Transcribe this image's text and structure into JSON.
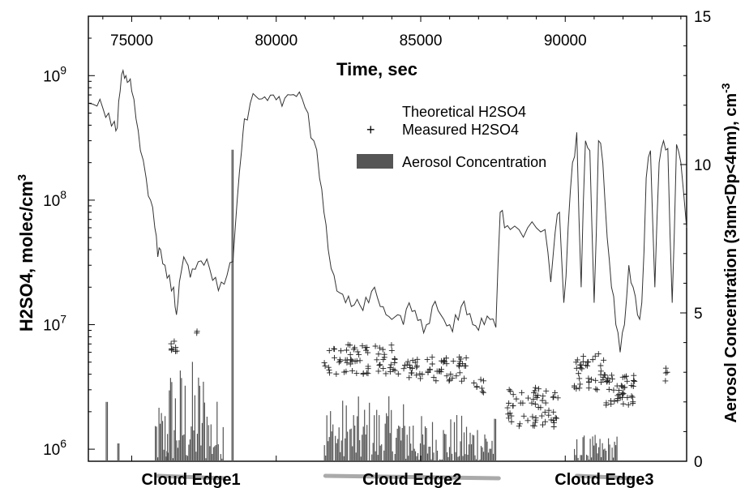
{
  "chart_data": {
    "type": "line",
    "x": {
      "label": "Time, sec",
      "range": [
        73500,
        94200
      ],
      "ticks": [
        75000,
        80000,
        85000,
        90000
      ],
      "tick_labels": [
        "75000",
        "80000",
        "85000",
        "90000"
      ],
      "position": "top"
    },
    "y_left": {
      "label": "H2SO4, molec/cm3",
      "label_base": "H2SO4, molec/cm",
      "label_sup": "3",
      "scale": "log",
      "range": [
        800000,
        3000000000
      ],
      "ticks": [
        1000000,
        10000000,
        100000000,
        1000000000
      ],
      "tick_labels": [
        {
          "base": "10",
          "exp": "6"
        },
        {
          "base": "10",
          "exp": "7"
        },
        {
          "base": "10",
          "exp": "8"
        },
        {
          "base": "10",
          "exp": "9"
        }
      ]
    },
    "y_right": {
      "label": "Aerosol Concentration (3nm<Dp<4nm), cm-3",
      "label_base": "Aerosol Concentration (3nm<Dp<4nm), cm",
      "label_sup": "-3",
      "scale": "linear",
      "range": [
        0,
        15
      ],
      "ticks": [
        0,
        5,
        10,
        15
      ],
      "tick_labels": [
        "0",
        "5",
        "10",
        "15"
      ]
    },
    "legend": {
      "placement": "top-right",
      "entries": [
        {
          "label": "Theoretical H2SO4",
          "kind": "line"
        },
        {
          "label": "Measured H2SO4",
          "kind": "marker",
          "symbol": "+"
        },
        {
          "label": "Aerosol Concentration",
          "kind": "bar"
        }
      ]
    },
    "series": [
      {
        "name": "Theoretical H2SO4",
        "kind": "line",
        "axis": "left",
        "color": "#333333",
        "points": [
          [
            73500,
            600000000
          ],
          [
            73800,
            570000000
          ],
          [
            74000,
            550000000
          ],
          [
            74200,
            500000000
          ],
          [
            74400,
            430000000
          ],
          [
            74500,
            380000000
          ],
          [
            74600,
            750000000
          ],
          [
            74700,
            1100000000
          ],
          [
            74800,
            1000000000
          ],
          [
            74900,
            900000000
          ],
          [
            75000,
            750000000
          ],
          [
            75150,
            450000000
          ],
          [
            75300,
            250000000
          ],
          [
            75500,
            150000000
          ],
          [
            75650,
            100000000
          ],
          [
            75800,
            60000000
          ],
          [
            75900,
            35000000
          ],
          [
            76000,
            40000000
          ],
          [
            76150,
            30000000
          ],
          [
            76300,
            25000000
          ],
          [
            76450,
            20000000
          ],
          [
            76550,
            12000000
          ],
          [
            76650,
            22000000
          ],
          [
            76800,
            35000000
          ],
          [
            76950,
            30000000
          ],
          [
            77100,
            28000000
          ],
          [
            77300,
            32000000
          ],
          [
            77500,
            30000000
          ],
          [
            77700,
            28000000
          ],
          [
            77900,
            24000000
          ],
          [
            78100,
            22000000
          ],
          [
            78300,
            25000000
          ],
          [
            78500,
            32000000
          ],
          [
            78650,
            100000000
          ],
          [
            78800,
            250000000
          ],
          [
            78900,
            450000000
          ],
          [
            79100,
            600000000
          ],
          [
            79300,
            680000000
          ],
          [
            79500,
            650000000
          ],
          [
            79700,
            630000000
          ],
          [
            79900,
            700000000
          ],
          [
            80100,
            680000000
          ],
          [
            80300,
            660000000
          ],
          [
            80500,
            700000000
          ],
          [
            80700,
            680000000
          ],
          [
            80900,
            650000000
          ],
          [
            81100,
            500000000
          ],
          [
            81300,
            300000000
          ],
          [
            81500,
            150000000
          ],
          [
            81650,
            80000000
          ],
          [
            81800,
            40000000
          ],
          [
            82000,
            25000000
          ],
          [
            82200,
            18000000
          ],
          [
            82400,
            15000000
          ],
          [
            82600,
            14000000
          ],
          [
            82800,
            16000000
          ],
          [
            83000,
            13000000
          ],
          [
            83200,
            15000000
          ],
          [
            83400,
            20000000
          ],
          [
            83600,
            14000000
          ],
          [
            83800,
            12000000
          ],
          [
            84000,
            11000000
          ],
          [
            84200,
            12000000
          ],
          [
            84400,
            10000000
          ],
          [
            84600,
            15000000
          ],
          [
            84800,
            13000000
          ],
          [
            85000,
            11000000
          ],
          [
            85200,
            10000000
          ],
          [
            85400,
            14000000
          ],
          [
            85600,
            13000000
          ],
          [
            85800,
            11000000
          ],
          [
            86000,
            10000000
          ],
          [
            86200,
            12000000
          ],
          [
            86400,
            14000000
          ],
          [
            86600,
            12000000
          ],
          [
            86800,
            10000000
          ],
          [
            87000,
            9000000
          ],
          [
            87200,
            10000000
          ],
          [
            87400,
            11000000
          ],
          [
            87600,
            9500000
          ],
          [
            87750,
            80000000
          ],
          [
            87900,
            60000000
          ],
          [
            88100,
            58000000
          ],
          [
            88400,
            58000000
          ],
          [
            88700,
            60000000
          ],
          [
            89000,
            60000000
          ],
          [
            89300,
            58000000
          ],
          [
            89500,
            22000000
          ],
          [
            89650,
            55000000
          ],
          [
            89800,
            80000000
          ],
          [
            89950,
            15000000
          ],
          [
            90100,
            60000000
          ],
          [
            90250,
            200000000
          ],
          [
            90400,
            350000000
          ],
          [
            90550,
            20000000
          ],
          [
            90700,
            300000000
          ],
          [
            90850,
            250000000
          ],
          [
            91000,
            15000000
          ],
          [
            91150,
            300000000
          ],
          [
            91300,
            200000000
          ],
          [
            91450,
            50000000
          ],
          [
            91600,
            20000000
          ],
          [
            91750,
            10000000
          ],
          [
            91900,
            6000000
          ],
          [
            92050,
            10000000
          ],
          [
            92200,
            30000000
          ],
          [
            92350,
            20000000
          ],
          [
            92500,
            12000000
          ],
          [
            92650,
            15000000
          ],
          [
            92800,
            150000000
          ],
          [
            92950,
            250000000
          ],
          [
            93100,
            20000000
          ],
          [
            93250,
            200000000
          ],
          [
            93400,
            300000000
          ],
          [
            93550,
            260000000
          ],
          [
            93700,
            15000000
          ],
          [
            93850,
            280000000
          ],
          [
            94000,
            200000000
          ],
          [
            94200,
            60000000
          ]
        ]
      },
      {
        "name": "Measured H2SO4",
        "kind": "scatter",
        "axis": "left",
        "marker": "+",
        "color": "#222222",
        "clusters": [
          {
            "x": [
              76350,
              76600
            ],
            "y": [
              6000000,
              7500000
            ],
            "count": 8
          },
          {
            "x": [
              77250,
              77300
            ],
            "y": [
              8500000,
              9000000
            ],
            "count": 2
          },
          {
            "x": [
              81650,
              84200
            ],
            "y": [
              4000000,
              7000000
            ],
            "count": 70
          },
          {
            "x": [
              84200,
              86600
            ],
            "y": [
              3500000,
              5500000
            ],
            "count": 60
          },
          {
            "x": [
              86800,
              87200
            ],
            "y": [
              2800000,
              3800000
            ],
            "count": 8
          },
          {
            "x": [
              88000,
              89800
            ],
            "y": [
              1500000,
              3200000
            ],
            "count": 60
          },
          {
            "x": [
              90300,
              91400
            ],
            "y": [
              3000000,
              6000000
            ],
            "count": 40
          },
          {
            "x": [
              91400,
              92400
            ],
            "y": [
              2200000,
              4000000
            ],
            "count": 45
          },
          {
            "x": [
              93450,
              93600
            ],
            "y": [
              3500000,
              4500000
            ],
            "count": 4
          }
        ]
      },
      {
        "name": "Aerosol Concentration",
        "kind": "bar",
        "axis": "right",
        "color": "#555555",
        "bursts": [
          {
            "x": [
              74100,
              74150
            ],
            "max": 2.0
          },
          {
            "x": [
              74500,
              74550
            ],
            "max": 0.6
          },
          {
            "x": [
              75800,
              76250
            ],
            "max": 2.2
          },
          {
            "x": [
              76200,
              77600
            ],
            "max": 3.5
          },
          {
            "x": [
              77600,
              78200
            ],
            "max": 2.2
          },
          {
            "x": [
              78450,
              78520
            ],
            "max": 10.5
          },
          {
            "x": [
              81650,
              84800
            ],
            "max": 2.2
          },
          {
            "x": [
              84800,
              87600
            ],
            "max": 1.6
          },
          {
            "x": [
              90300,
              91800
            ],
            "max": 0.9
          }
        ]
      }
    ],
    "annotations": [
      {
        "label": "Cloud Edge1",
        "x_start": 75900,
        "x_end": 78200
      },
      {
        "label": "Cloud Edge2",
        "x_start": 81700,
        "x_end": 87700
      },
      {
        "label": "Cloud Edge3",
        "x_start": 90400,
        "x_end": 92300
      }
    ]
  }
}
